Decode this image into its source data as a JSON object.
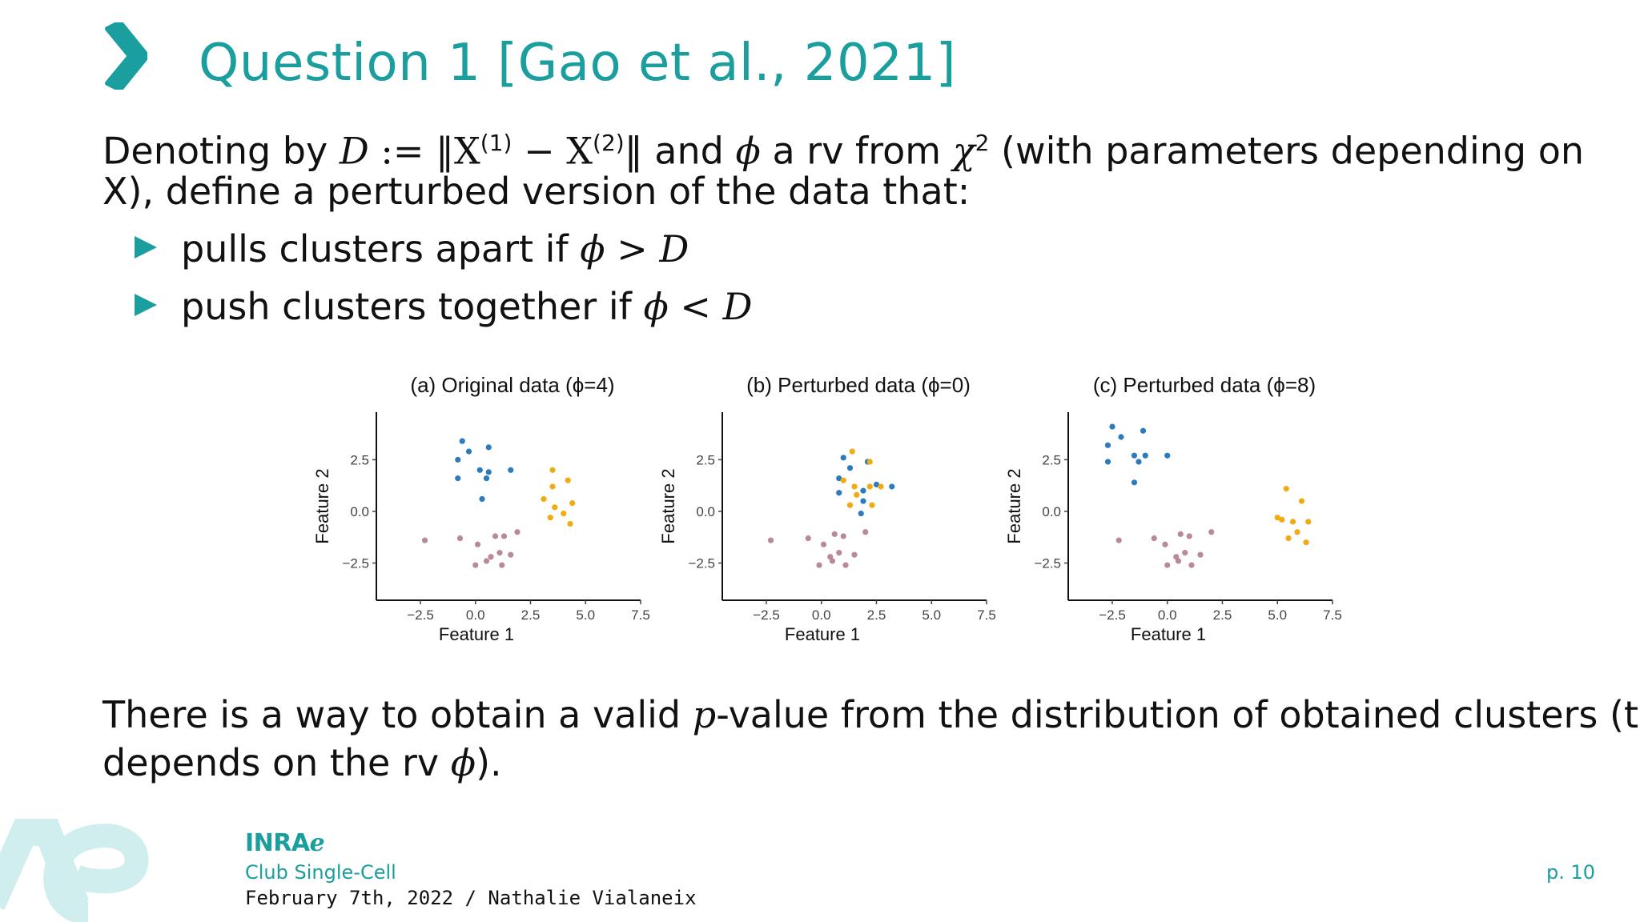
{
  "slide": {
    "title": "Question 1 [Gao et al., 2021]",
    "intro_line1_a": "Denoting by ",
    "intro_line1_D": "D",
    "intro_line1_def": " := ‖X",
    "intro_line1_sup1": "(1)",
    "intro_line1_minus": " − X",
    "intro_line1_sup2": "(2)",
    "intro_line1_b": "‖ and ",
    "phi": "ϕ",
    "intro_line1_c": " a rv from ",
    "chi": "χ",
    "chi_sup": "2",
    "intro_line1_d": " (with parameters depending on",
    "intro_line2": "X), define a perturbed version of the data that:",
    "bullet1_text": "pulls clusters apart if ",
    "bullet1_op": " > ",
    "bullet2_text": "push clusters together if ",
    "bullet2_op": " < ",
    "D": "D",
    "conclusion_line1_a": "There is a way to obtain a valid ",
    "conclusion_p": "p",
    "conclusion_line1_b": "-value from the distribution of obtained clusters (that",
    "conclusion_line2_a": "depends on the rv ",
    "conclusion_line2_b": ")."
  },
  "footer": {
    "logo": "INRAℯ",
    "event": "Club Single-Cell",
    "date_author": "February 7th, 2022 / Nathalie Vialaneix",
    "page": "p. 10"
  },
  "colors": {
    "accent": "#1a9e9e",
    "blue": "#2b7bbf",
    "orange": "#f0aa12",
    "pink": "#b88a99"
  },
  "chart_data": [
    {
      "type": "scatter",
      "title": "(a) Original data (ϕ=4)",
      "xlabel": "Feature 1",
      "ylabel": "Feature 2",
      "xlim": [
        -4.5,
        7.5
      ],
      "ylim": [
        -4.3,
        4.8
      ],
      "xticks": [
        "−2.5",
        "0.0",
        "2.5",
        "5.0",
        "7.5"
      ],
      "yticks": [
        "2.5",
        "0.0",
        "−2.5"
      ],
      "series": [
        {
          "color": "blue",
          "points": [
            [
              -0.6,
              3.4
            ],
            [
              -0.3,
              2.9
            ],
            [
              0.6,
              3.1
            ],
            [
              -0.8,
              2.5
            ],
            [
              0.2,
              2.0
            ],
            [
              0.6,
              1.9
            ],
            [
              1.6,
              2.0
            ],
            [
              -0.8,
              1.6
            ],
            [
              0.5,
              1.6
            ],
            [
              0.3,
              0.6
            ]
          ]
        },
        {
          "color": "orange",
          "points": [
            [
              3.5,
              2.0
            ],
            [
              4.2,
              1.5
            ],
            [
              3.5,
              1.2
            ],
            [
              3.1,
              0.6
            ],
            [
              4.4,
              0.4
            ],
            [
              3.6,
              0.2
            ],
            [
              3.4,
              -0.3
            ],
            [
              4.0,
              -0.1
            ],
            [
              4.3,
              -0.6
            ]
          ]
        },
        {
          "color": "pink",
          "points": [
            [
              -2.3,
              -1.4
            ],
            [
              -0.7,
              -1.3
            ],
            [
              0.1,
              -1.6
            ],
            [
              0.9,
              -1.2
            ],
            [
              1.3,
              -1.2
            ],
            [
              1.9,
              -1.0
            ],
            [
              0.7,
              -2.2
            ],
            [
              1.1,
              -2.0
            ],
            [
              1.6,
              -2.1
            ],
            [
              0.0,
              -2.6
            ],
            [
              0.5,
              -2.4
            ],
            [
              1.2,
              -2.6
            ]
          ]
        }
      ]
    },
    {
      "type": "scatter",
      "title": "(b) Perturbed data (ϕ=0)",
      "xlabel": "Feature 1",
      "ylabel": "Feature 2",
      "xlim": [
        -4.5,
        7.5
      ],
      "ylim": [
        -4.3,
        4.8
      ],
      "xticks": [
        "−2.5",
        "0.0",
        "2.5",
        "5.0",
        "7.5"
      ],
      "yticks": [
        "2.5",
        "0.0",
        "−2.5"
      ],
      "series": [
        {
          "color": "blue",
          "points": [
            [
              1.0,
              2.6
            ],
            [
              2.1,
              2.4
            ],
            [
              1.3,
              2.1
            ],
            [
              0.8,
              1.6
            ],
            [
              1.9,
              1.0
            ],
            [
              2.5,
              1.3
            ],
            [
              3.2,
              1.2
            ],
            [
              0.8,
              0.9
            ],
            [
              1.9,
              0.5
            ],
            [
              1.8,
              -0.1
            ]
          ]
        },
        {
          "color": "orange",
          "points": [
            [
              1.4,
              2.9
            ],
            [
              2.2,
              2.4
            ],
            [
              1.0,
              1.5
            ],
            [
              1.5,
              1.2
            ],
            [
              2.2,
              1.2
            ],
            [
              1.6,
              0.8
            ],
            [
              2.7,
              1.2
            ],
            [
              2.3,
              0.3
            ],
            [
              1.3,
              0.3
            ]
          ]
        },
        {
          "color": "pink",
          "points": [
            [
              -2.3,
              -1.4
            ],
            [
              -0.6,
              -1.3
            ],
            [
              0.1,
              -1.6
            ],
            [
              0.6,
              -1.1
            ],
            [
              1.0,
              -1.2
            ],
            [
              2.0,
              -1.0
            ],
            [
              0.4,
              -2.2
            ],
            [
              0.8,
              -2.0
            ],
            [
              1.5,
              -2.1
            ],
            [
              -0.1,
              -2.6
            ],
            [
              0.5,
              -2.4
            ],
            [
              1.1,
              -2.6
            ]
          ]
        }
      ]
    },
    {
      "type": "scatter",
      "title": "(c) Perturbed data (ϕ=8)",
      "xlabel": "Feature 1",
      "ylabel": "Feature 2",
      "xlim": [
        -4.5,
        7.5
      ],
      "ylim": [
        -4.3,
        4.8
      ],
      "xticks": [
        "−2.5",
        "0.0",
        "2.5",
        "5.0",
        "7.5"
      ],
      "yticks": [
        "2.5",
        "0.0",
        "−2.5"
      ],
      "series": [
        {
          "color": "blue",
          "points": [
            [
              -2.5,
              4.1
            ],
            [
              -1.1,
              3.9
            ],
            [
              -2.1,
              3.6
            ],
            [
              -2.7,
              3.2
            ],
            [
              -1.5,
              2.7
            ],
            [
              -1.0,
              2.7
            ],
            [
              0.0,
              2.7
            ],
            [
              -2.7,
              2.4
            ],
            [
              -1.3,
              2.4
            ],
            [
              -1.5,
              1.4
            ]
          ]
        },
        {
          "color": "orange",
          "points": [
            [
              5.4,
              1.1
            ],
            [
              6.1,
              0.5
            ],
            [
              5.0,
              -0.3
            ],
            [
              5.7,
              -0.5
            ],
            [
              6.4,
              -0.5
            ],
            [
              5.9,
              -1.0
            ],
            [
              5.5,
              -1.3
            ],
            [
              6.3,
              -1.5
            ],
            [
              5.2,
              -0.4
            ]
          ]
        },
        {
          "color": "pink",
          "points": [
            [
              -2.2,
              -1.4
            ],
            [
              -0.6,
              -1.3
            ],
            [
              -0.1,
              -1.6
            ],
            [
              0.6,
              -1.1
            ],
            [
              1.0,
              -1.2
            ],
            [
              2.0,
              -1.0
            ],
            [
              0.4,
              -2.2
            ],
            [
              0.8,
              -2.0
            ],
            [
              1.5,
              -2.1
            ],
            [
              0.0,
              -2.6
            ],
            [
              0.5,
              -2.4
            ],
            [
              1.1,
              -2.6
            ]
          ]
        }
      ]
    }
  ]
}
